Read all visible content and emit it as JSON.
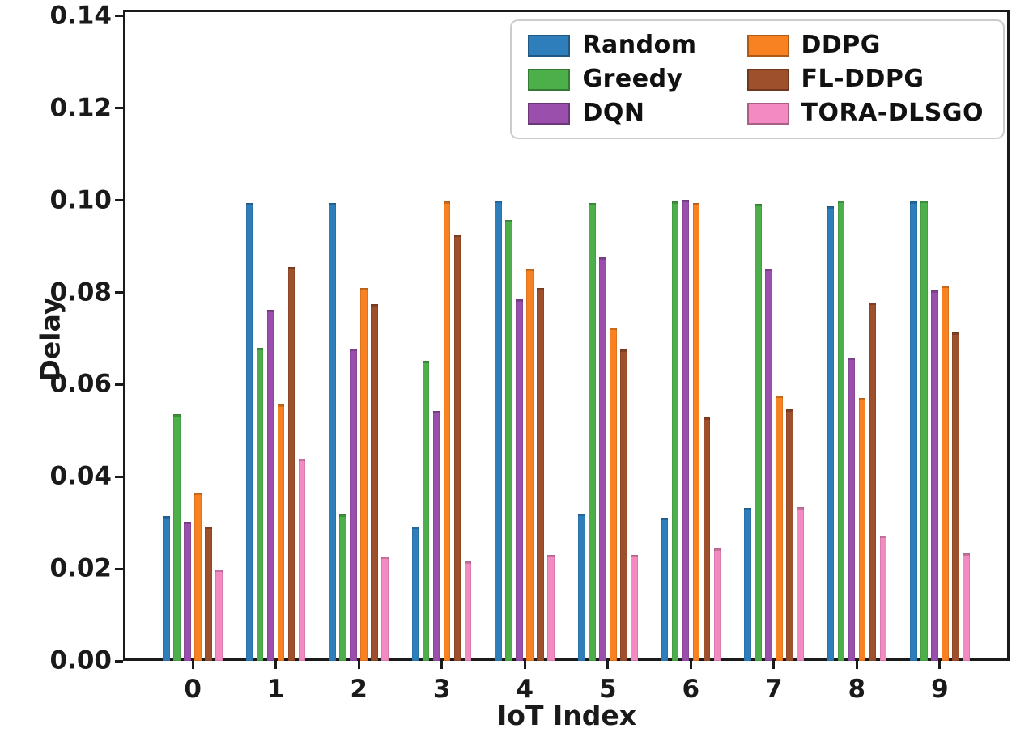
{
  "chart_data": {
    "type": "bar",
    "title": "",
    "xlabel": "IoT Index",
    "ylabel": "Delay",
    "categories": [
      "0",
      "1",
      "2",
      "3",
      "4",
      "5",
      "6",
      "7",
      "8",
      "9"
    ],
    "yticks": [
      "0.00",
      "0.02",
      "0.04",
      "0.06",
      "0.08",
      "0.10",
      "0.12",
      "0.14"
    ],
    "ylim": [
      0,
      0.14
    ],
    "grid": false,
    "legend_position": "upper right",
    "legend_columns": 2,
    "series": [
      {
        "name": "Random",
        "color": "#2e7ebc",
        "values": [
          0.0315,
          0.0995,
          0.0995,
          0.0292,
          0.0999,
          0.032,
          0.0311,
          0.0332,
          0.0988,
          0.0997
        ]
      },
      {
        "name": "Greedy",
        "color": "#4caf4a",
        "values": [
          0.0535,
          0.068,
          0.0318,
          0.0652,
          0.0957,
          0.0995,
          0.0997,
          0.0993,
          0.0999,
          0.1
        ]
      },
      {
        "name": "DQN",
        "color": "#9a4fad",
        "values": [
          0.0303,
          0.0763,
          0.0678,
          0.0542,
          0.0785,
          0.0877,
          0.1002,
          0.0852,
          0.0659,
          0.0805
        ]
      },
      {
        "name": "DDPG",
        "color": "#f88122",
        "values": [
          0.0366,
          0.0557,
          0.081,
          0.0997,
          0.0852,
          0.0723,
          0.0994,
          0.0577,
          0.0571,
          0.0815
        ]
      },
      {
        "name": "FL-DDPG",
        "color": "#9e4f2b",
        "values": [
          0.0291,
          0.0855,
          0.0775,
          0.0925,
          0.081,
          0.0677,
          0.0528,
          0.0546,
          0.0778,
          0.0713
        ]
      },
      {
        "name": "TORA-DLSGO",
        "color": "#f38ac2",
        "values": [
          0.0199,
          0.044,
          0.0226,
          0.0216,
          0.023,
          0.023,
          0.0245,
          0.0334,
          0.0272,
          0.0233
        ]
      }
    ]
  }
}
